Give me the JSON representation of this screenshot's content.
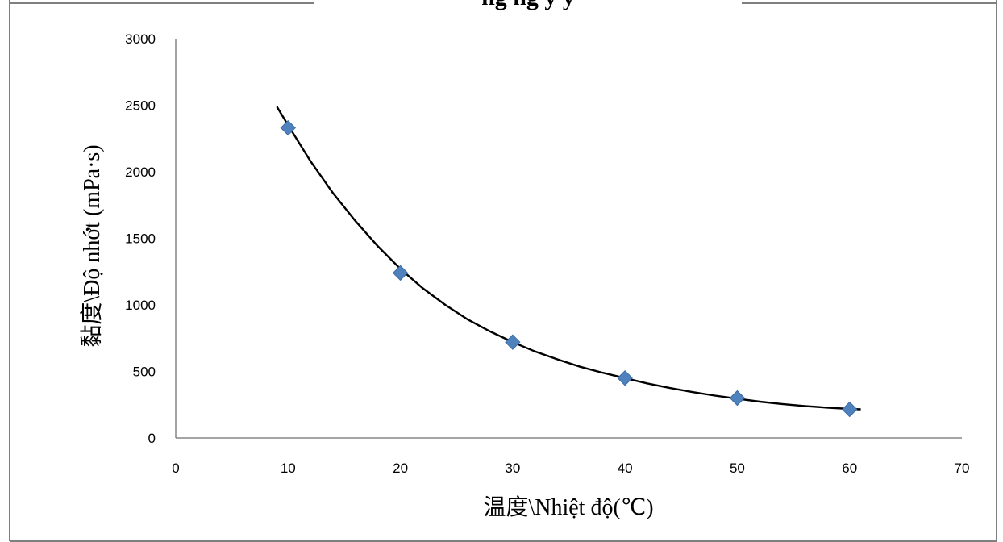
{
  "chart_data": {
    "type": "scatter",
    "title": "ng ng y y",
    "xlabel": "温度\\Nhiệt độ(℃)",
    "ylabel": "黏度\\Độ nhớt (mPa·s)",
    "xlim": [
      0,
      70
    ],
    "ylim": [
      0,
      3000
    ],
    "x_ticks": [
      0,
      10,
      20,
      30,
      40,
      50,
      60,
      70
    ],
    "y_ticks": [
      0,
      500,
      1000,
      1500,
      2000,
      2500,
      3000
    ],
    "grid": false,
    "legend": "none",
    "series": [
      {
        "points": [
          {
            "x": 10,
            "y": 2330
          },
          {
            "x": 20,
            "y": 1240
          },
          {
            "x": 30,
            "y": 720
          },
          {
            "x": 40,
            "y": 450
          },
          {
            "x": 50,
            "y": 300
          },
          {
            "x": 60,
            "y": 215
          }
        ],
        "marker": "diamond",
        "color": "#4f81bd"
      }
    ],
    "trendline": {
      "type": "polynomial",
      "color": "#000000",
      "x": [
        9,
        10,
        12,
        14,
        16,
        18,
        20,
        22,
        24,
        26,
        28,
        30,
        32,
        34,
        36,
        38,
        40,
        42,
        44,
        46,
        48,
        50,
        52,
        54,
        56,
        58,
        60,
        61
      ],
      "y": [
        2490,
        2350,
        2080,
        1840,
        1630,
        1440,
        1270,
        1125,
        1000,
        890,
        800,
        720,
        650,
        590,
        535,
        490,
        450,
        410,
        375,
        345,
        318,
        295,
        273,
        255,
        240,
        228,
        218,
        215
      ]
    }
  }
}
